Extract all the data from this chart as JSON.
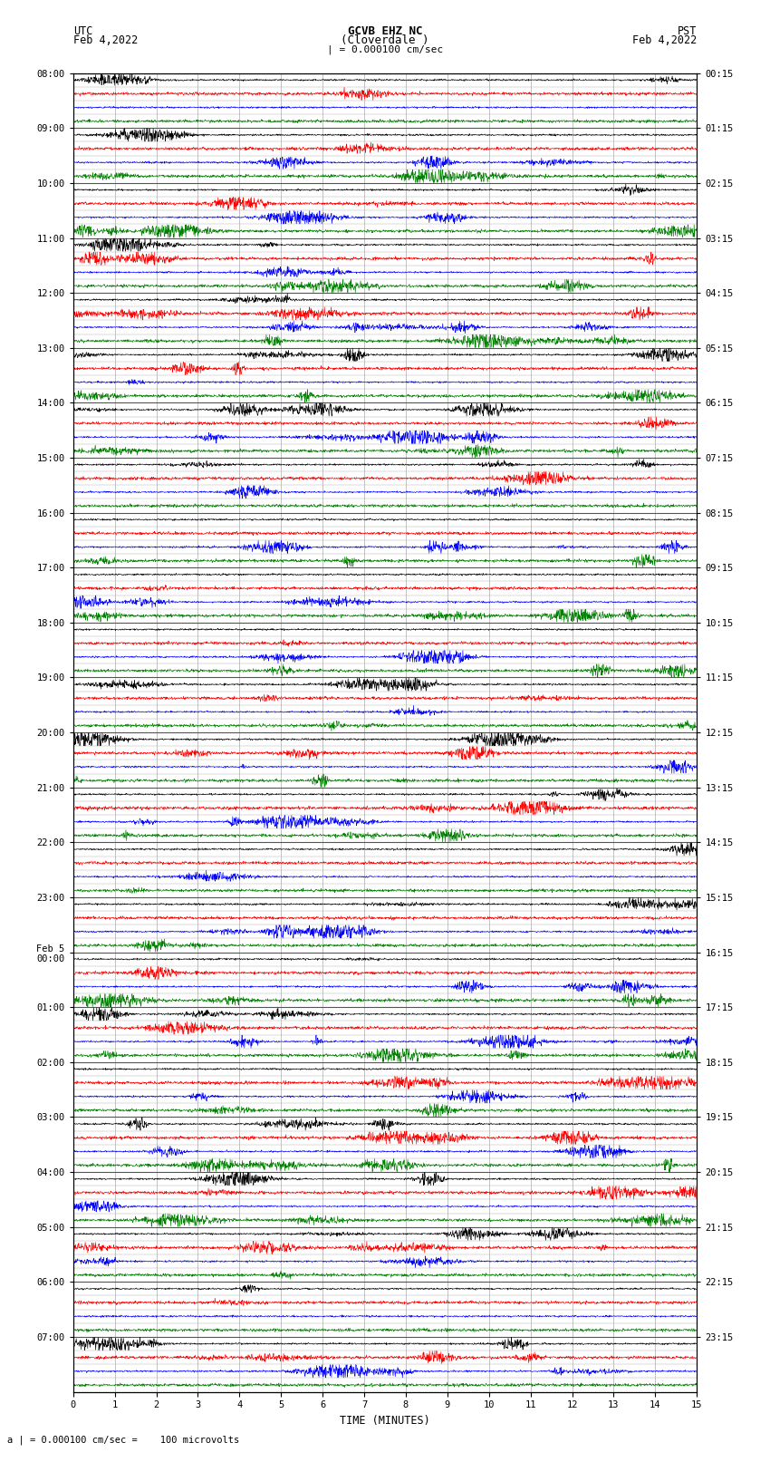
{
  "title_line1": "GCVB EHZ NC",
  "title_line2": "(Cloverdale )",
  "title_line3": "| = 0.000100 cm/sec",
  "left_header": "UTC",
  "left_subheader": "Feb 4,2022",
  "right_header": "PST",
  "right_subheader": "Feb 4,2022",
  "xlabel": "TIME (MINUTES)",
  "footnote": "a | = 0.000100 cm/sec =    100 microvolts",
  "x_min": 0,
  "x_max": 15,
  "x_ticks": [
    0,
    1,
    2,
    3,
    4,
    5,
    6,
    7,
    8,
    9,
    10,
    11,
    12,
    13,
    14,
    15
  ],
  "utc_labels": [
    "08:00",
    "09:00",
    "10:00",
    "11:00",
    "12:00",
    "13:00",
    "14:00",
    "15:00",
    "16:00",
    "17:00",
    "18:00",
    "19:00",
    "20:00",
    "21:00",
    "22:00",
    "23:00",
    "Feb 5\n00:00",
    "01:00",
    "02:00",
    "03:00",
    "04:00",
    "05:00",
    "06:00",
    "07:00"
  ],
  "pst_labels": [
    "00:15",
    "01:15",
    "02:15",
    "03:15",
    "04:15",
    "05:15",
    "06:15",
    "07:15",
    "08:15",
    "09:15",
    "10:15",
    "11:15",
    "12:15",
    "13:15",
    "14:15",
    "15:15",
    "16:15",
    "17:15",
    "18:15",
    "19:15",
    "20:15",
    "21:15",
    "22:15",
    "23:15"
  ],
  "trace_colors": [
    "black",
    "red",
    "blue",
    "green"
  ],
  "n_hours": 24,
  "n_traces_per_hour": 4,
  "bg_color": "white",
  "grid_color": "#888888",
  "figsize": [
    8.5,
    16.13
  ],
  "dpi": 100
}
